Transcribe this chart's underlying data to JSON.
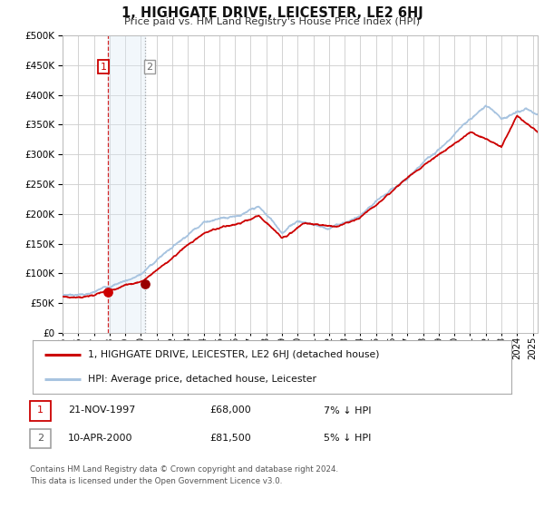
{
  "title": "1, HIGHGATE DRIVE, LEICESTER, LE2 6HJ",
  "subtitle": "Price paid vs. HM Land Registry's House Price Index (HPI)",
  "legend_line1": "1, HIGHGATE DRIVE, LEICESTER, LE2 6HJ (detached house)",
  "legend_line2": "HPI: Average price, detached house, Leicester",
  "table_row1_date": "21-NOV-1997",
  "table_row1_price": "£68,000",
  "table_row1_hpi": "7% ↓ HPI",
  "table_row2_date": "10-APR-2000",
  "table_row2_price": "£81,500",
  "table_row2_hpi": "5% ↓ HPI",
  "footnote1": "Contains HM Land Registry data © Crown copyright and database right 2024.",
  "footnote2": "This data is licensed under the Open Government Licence v3.0.",
  "hpi_color": "#a8c4e0",
  "price_color": "#cc0000",
  "shading_color": "#dce9f5",
  "grid_color": "#cccccc",
  "background_color": "#ffffff",
  "plot_background": "#ffffff",
  "sale1_date_num": 1997.89,
  "sale1_price": 68000,
  "sale2_date_num": 2000.27,
  "sale2_price": 81500,
  "ylim_top": 500000,
  "ylim_bottom": 0,
  "xlim_left": 1995.0,
  "xlim_right": 2025.3
}
